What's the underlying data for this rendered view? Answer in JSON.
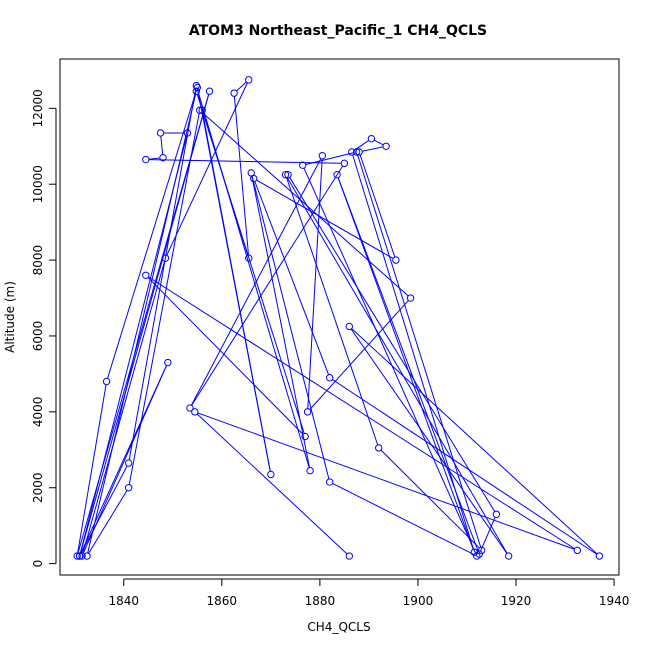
{
  "chart_data": {
    "type": "line",
    "title": "ATOM3 Northeast_Pacific_1 CH4_QCLS",
    "xlabel": "CH4_QCLS",
    "ylabel": "Altitude (m)",
    "xlim": [
      1827,
      1941
    ],
    "ylim": [
      -300,
      13300
    ],
    "xticks": [
      1840,
      1860,
      1880,
      1900,
      1920,
      1940
    ],
    "yticks": [
      0,
      2000,
      4000,
      6000,
      8000,
      10000,
      12000
    ],
    "series": [
      {
        "color": "#0000ff",
        "marker": "open-circle",
        "points": [
          [
            1886.0,
            200
          ],
          [
            1854.5,
            4000
          ],
          [
            1932.5,
            350
          ],
          [
            1844.5,
            7600
          ],
          [
            1877.0,
            3350
          ],
          [
            1854.8,
            12450
          ],
          [
            1832.5,
            200
          ],
          [
            1841.0,
            2000
          ],
          [
            1855.5,
            11950
          ],
          [
            1898.5,
            7000
          ],
          [
            1877.5,
            4000
          ],
          [
            1880.5,
            10750
          ],
          [
            1853.5,
            4100
          ],
          [
            1885.0,
            10550
          ],
          [
            1844.5,
            10650
          ],
          [
            1848.0,
            10700
          ],
          [
            1847.5,
            11350
          ],
          [
            1853.0,
            11350
          ],
          [
            1831.0,
            200
          ],
          [
            1857.5,
            12450
          ],
          [
            1830.5,
            200
          ],
          [
            1836.5,
            4800
          ],
          [
            1855.0,
            12550
          ],
          [
            1870.0,
            2350
          ],
          [
            1856.0,
            11950
          ],
          [
            1865.5,
            8050
          ],
          [
            1862.5,
            12400
          ],
          [
            1865.5,
            12750
          ],
          [
            1848.5,
            8050
          ],
          [
            1831.5,
            200
          ],
          [
            1849.0,
            5300
          ],
          [
            1831.0,
            200
          ],
          [
            1841.0,
            2650
          ],
          [
            1854.8,
            12600
          ],
          [
            1878.0,
            2450
          ],
          [
            1866.0,
            10300
          ],
          [
            1882.0,
            2150
          ],
          [
            1912.0,
            200
          ],
          [
            1876.5,
            10500
          ],
          [
            1887.5,
            10850
          ],
          [
            1913.0,
            350
          ],
          [
            1892.0,
            3050
          ],
          [
            1873.0,
            10250
          ],
          [
            1918.5,
            200
          ],
          [
            1886.0,
            6250
          ],
          [
            1937.0,
            200
          ],
          [
            1882.0,
            4900
          ],
          [
            1866.5,
            10150
          ],
          [
            1895.5,
            8000
          ],
          [
            1888.0,
            10850
          ],
          [
            1893.5,
            11000
          ],
          [
            1890.5,
            11200
          ],
          [
            1886.5,
            10850
          ],
          [
            1911.5,
            300
          ],
          [
            1883.5,
            10250
          ],
          [
            1912.5,
            250
          ],
          [
            1916.0,
            1300
          ],
          [
            1873.5,
            10250
          ]
        ]
      }
    ]
  }
}
